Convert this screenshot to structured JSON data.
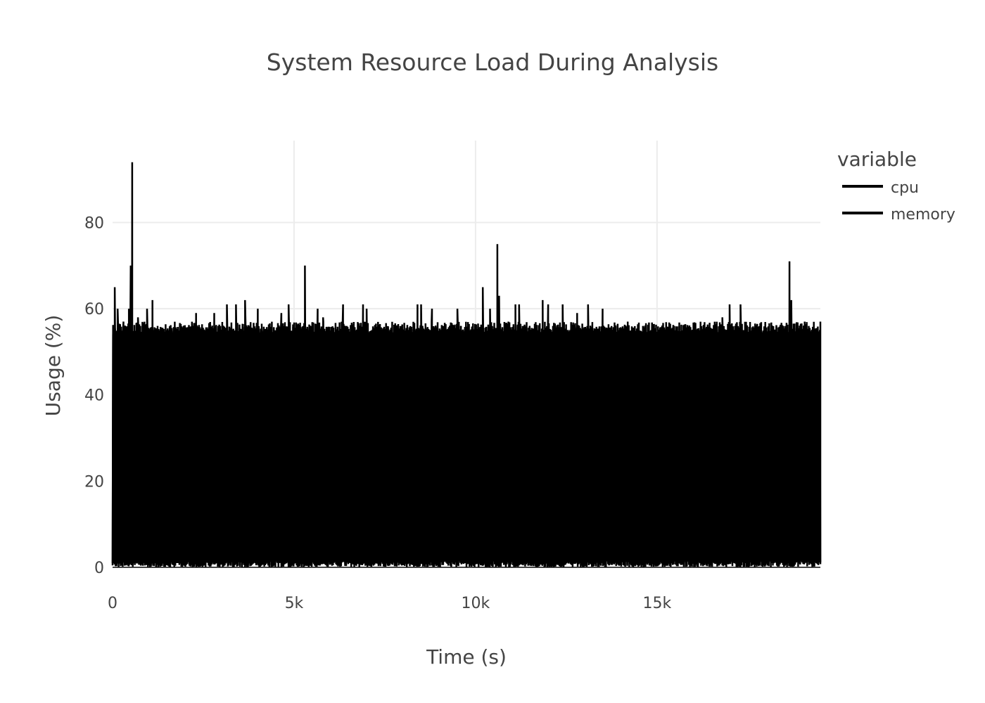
{
  "chart_data": {
    "type": "line",
    "title": "System Resource Load During Analysis",
    "xlabel": "Time (s)",
    "ylabel": "Usage (%)",
    "xlim": [
      0,
      19500
    ],
    "ylim": [
      0,
      99
    ],
    "x_ticks": [
      {
        "value": 0,
        "label": "0"
      },
      {
        "value": 5000,
        "label": "5k"
      },
      {
        "value": 10000,
        "label": "10k"
      },
      {
        "value": 15000,
        "label": "15k"
      }
    ],
    "y_ticks": [
      {
        "value": 0,
        "label": "0"
      },
      {
        "value": 20,
        "label": "20"
      },
      {
        "value": 40,
        "label": "40"
      },
      {
        "value": 60,
        "label": "60"
      },
      {
        "value": 80,
        "label": "80"
      }
    ],
    "grid": true,
    "legend": {
      "title": "variable",
      "position": "right"
    },
    "line_color": "#000000",
    "series": [
      {
        "name": "cpu",
        "description_points": [
          [
            0,
            2
          ],
          [
            60,
            65
          ],
          [
            100,
            5
          ],
          [
            140,
            60
          ],
          [
            200,
            1
          ],
          [
            300,
            57
          ],
          [
            400,
            3
          ],
          [
            450,
            60
          ],
          [
            500,
            70
          ],
          [
            540,
            94
          ],
          [
            580,
            2
          ],
          [
            700,
            58
          ],
          [
            800,
            1
          ],
          [
            950,
            60
          ],
          [
            1000,
            2
          ],
          [
            1100,
            62
          ],
          [
            1200,
            1
          ],
          [
            2300,
            59
          ],
          [
            2800,
            59
          ],
          [
            3150,
            61
          ],
          [
            3400,
            61
          ],
          [
            3650,
            62
          ],
          [
            4000,
            60
          ],
          [
            4650,
            59
          ],
          [
            4850,
            61
          ],
          [
            5000,
            2
          ],
          [
            5300,
            70
          ],
          [
            5450,
            1
          ],
          [
            5650,
            60
          ],
          [
            5800,
            58
          ],
          [
            6350,
            61
          ],
          [
            6550,
            1
          ],
          [
            6900,
            61
          ],
          [
            7000,
            60
          ],
          [
            7500,
            2
          ],
          [
            8400,
            61
          ],
          [
            8500,
            61
          ],
          [
            8800,
            60
          ],
          [
            9500,
            60
          ],
          [
            9900,
            2
          ],
          [
            10200,
            65
          ],
          [
            10400,
            60
          ],
          [
            10600,
            75
          ],
          [
            10650,
            63
          ],
          [
            10800,
            2
          ],
          [
            11100,
            61
          ],
          [
            11200,
            61
          ],
          [
            11500,
            2
          ],
          [
            11850,
            62
          ],
          [
            12000,
            61
          ],
          [
            12400,
            61
          ],
          [
            12800,
            59
          ],
          [
            13100,
            61
          ],
          [
            13500,
            60
          ],
          [
            14000,
            2
          ],
          [
            15000,
            2
          ],
          [
            16000,
            2
          ],
          [
            16800,
            58
          ],
          [
            17000,
            61
          ],
          [
            17300,
            61
          ],
          [
            18000,
            2
          ],
          [
            18650,
            71
          ],
          [
            18700,
            62
          ],
          [
            18800,
            2
          ],
          [
            19500,
            57
          ]
        ],
        "baseline_range": [
          0,
          57
        ]
      },
      {
        "name": "memory",
        "baseline_range": [
          0,
          56
        ]
      }
    ]
  }
}
